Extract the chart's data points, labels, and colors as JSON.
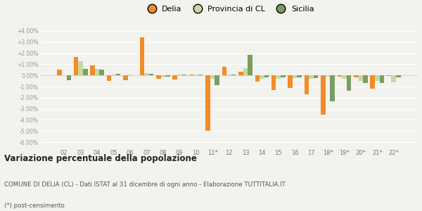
{
  "categories": [
    "02",
    "03",
    "04",
    "05",
    "06",
    "07",
    "08",
    "09",
    "10",
    "11*",
    "12",
    "13",
    "14",
    "15",
    "16",
    "17",
    "18*",
    "19*",
    "20*",
    "21*",
    "22*"
  ],
  "delia": [
    0.5,
    1.65,
    0.9,
    -0.5,
    -0.45,
    3.45,
    -0.3,
    -0.35,
    0.1,
    -5.0,
    0.75,
    0.3,
    -0.55,
    -1.3,
    -1.1,
    -1.7,
    -3.55,
    -0.1,
    -0.15,
    -1.2,
    -0.05
  ],
  "provincia_cl": [
    0.0,
    1.3,
    0.6,
    0.1,
    0.1,
    0.2,
    -0.2,
    0.1,
    0.1,
    -0.3,
    0.1,
    0.65,
    -0.3,
    -0.3,
    -0.25,
    -0.3,
    -0.1,
    -0.3,
    -0.5,
    -0.5,
    -0.6
  ],
  "sicilia": [
    -0.4,
    0.6,
    0.5,
    0.15,
    0.0,
    0.15,
    -0.1,
    0.05,
    0.1,
    -0.9,
    0.05,
    1.85,
    -0.15,
    -0.15,
    -0.15,
    -0.25,
    -2.35,
    -1.35,
    -0.7,
    -0.7,
    -0.2
  ],
  "delia_color": "#f28c28",
  "provincia_color": "#c5d9a0",
  "sicilia_color": "#7a9e60",
  "bg_color": "#f2f2ee",
  "grid_color": "#ffffff",
  "ylim": [
    -6.5,
    4.5
  ],
  "yticks": [
    -6.0,
    -5.0,
    -4.0,
    -3.0,
    -2.0,
    -1.0,
    0.0,
    1.0,
    2.0,
    3.0,
    4.0
  ],
  "ytick_labels": [
    "-6.00%",
    "-5.00%",
    "-4.00%",
    "-3.00%",
    "-2.00%",
    "-1.00%",
    "0.00%",
    "+1.00%",
    "+2.00%",
    "+3.00%",
    "+4.00%"
  ],
  "title": "Variazione percentuale della popolazione",
  "subtitle": "COMUNE DI DELIA (CL) - Dati ISTAT al 31 dicembre di ogni anno - Elaborazione TUTTITALIA.IT",
  "footnote": "(*) post-censimento",
  "legend_labels": [
    "Delia",
    "Provincia di CL",
    "Sicilia"
  ]
}
